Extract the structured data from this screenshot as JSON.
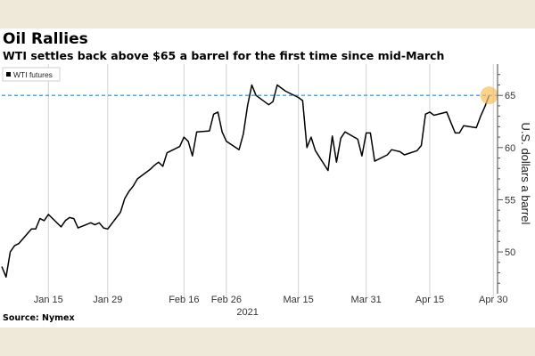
{
  "chart_data": {
    "type": "line",
    "title": "Oil Rallies",
    "subtitle": "WTI settles back above $65 a barrel for the first time since mid-March",
    "source": "Source: Nymex",
    "ylabel": "U.S. dollars a barrel",
    "year_label": "2021",
    "ylim": [
      46,
      68
    ],
    "y_ticks": [
      50,
      55,
      60,
      65
    ],
    "x_range": [
      "2021-01-04",
      "2021-05-01"
    ],
    "x_ticks": [
      {
        "date": "2021-01-15",
        "label": "Jan 15"
      },
      {
        "date": "2021-01-29",
        "label": "Jan 29"
      },
      {
        "date": "2021-02-16",
        "label": "Feb 16"
      },
      {
        "date": "2021-02-26",
        "label": "Feb 26"
      },
      {
        "date": "2021-03-15",
        "label": "Mar 15"
      },
      {
        "date": "2021-03-31",
        "label": "Mar 31"
      },
      {
        "date": "2021-04-15",
        "label": "Apr 15"
      },
      {
        "date": "2021-04-30",
        "label": "Apr 30"
      }
    ],
    "grid": "vertical",
    "legend_position": "top-left",
    "reference_line": {
      "y": 65,
      "style": "dashed",
      "color": "#3aa3e3"
    },
    "highlight_point": {
      "date": "2021-04-29",
      "value": 65.0,
      "color": "#f7bf5c"
    },
    "series": [
      {
        "name": "WTI futures",
        "color": "#000000",
        "x": [
          "2021-01-04",
          "2021-01-05",
          "2021-01-06",
          "2021-01-07",
          "2021-01-08",
          "2021-01-11",
          "2021-01-12",
          "2021-01-13",
          "2021-01-14",
          "2021-01-15",
          "2021-01-18",
          "2021-01-19",
          "2021-01-20",
          "2021-01-21",
          "2021-01-22",
          "2021-01-25",
          "2021-01-26",
          "2021-01-27",
          "2021-01-28",
          "2021-01-29",
          "2021-02-01",
          "2021-02-02",
          "2021-02-03",
          "2021-02-04",
          "2021-02-05",
          "2021-02-08",
          "2021-02-09",
          "2021-02-10",
          "2021-02-11",
          "2021-02-12",
          "2021-02-15",
          "2021-02-16",
          "2021-02-17",
          "2021-02-18",
          "2021-02-19",
          "2021-02-22",
          "2021-02-23",
          "2021-02-24",
          "2021-02-25",
          "2021-02-26",
          "2021-03-01",
          "2021-03-02",
          "2021-03-03",
          "2021-03-04",
          "2021-03-05",
          "2021-03-08",
          "2021-03-09",
          "2021-03-10",
          "2021-03-11",
          "2021-03-12",
          "2021-03-15",
          "2021-03-16",
          "2021-03-17",
          "2021-03-18",
          "2021-03-19",
          "2021-03-22",
          "2021-03-23",
          "2021-03-24",
          "2021-03-25",
          "2021-03-26",
          "2021-03-29",
          "2021-03-30",
          "2021-03-31",
          "2021-04-01",
          "2021-04-02",
          "2021-04-05",
          "2021-04-06",
          "2021-04-07",
          "2021-04-08",
          "2021-04-09",
          "2021-04-12",
          "2021-04-13",
          "2021-04-14",
          "2021-04-15",
          "2021-04-16",
          "2021-04-19",
          "2021-04-20",
          "2021-04-21",
          "2021-04-22",
          "2021-04-23",
          "2021-04-26",
          "2021-04-27",
          "2021-04-28",
          "2021-04-29"
        ],
        "values": [
          48.6,
          47.6,
          50.0,
          50.6,
          50.8,
          52.2,
          52.2,
          53.2,
          53.0,
          53.6,
          52.4,
          53.0,
          53.3,
          53.2,
          52.3,
          52.8,
          52.6,
          52.8,
          52.3,
          52.2,
          53.8,
          55.1,
          55.8,
          56.3,
          57.0,
          57.9,
          58.3,
          58.6,
          58.2,
          59.5,
          60.1,
          61.0,
          60.6,
          59.2,
          61.5,
          61.6,
          63.2,
          63.4,
          61.5,
          60.6,
          59.8,
          61.3,
          64.0,
          66.0,
          65.0,
          64.1,
          64.4,
          66.0,
          65.7,
          65.4,
          64.8,
          64.5,
          60.0,
          61.0,
          59.7,
          57.8,
          61.1,
          58.6,
          60.9,
          61.5,
          60.8,
          59.2,
          61.4,
          61.4,
          58.7,
          59.3,
          59.8,
          59.7,
          59.6,
          59.3,
          59.7,
          60.2,
          63.2,
          63.4,
          63.1,
          63.4,
          62.4,
          61.4,
          61.4,
          62.1,
          61.9,
          63.0,
          63.9,
          65.0
        ]
      }
    ]
  }
}
